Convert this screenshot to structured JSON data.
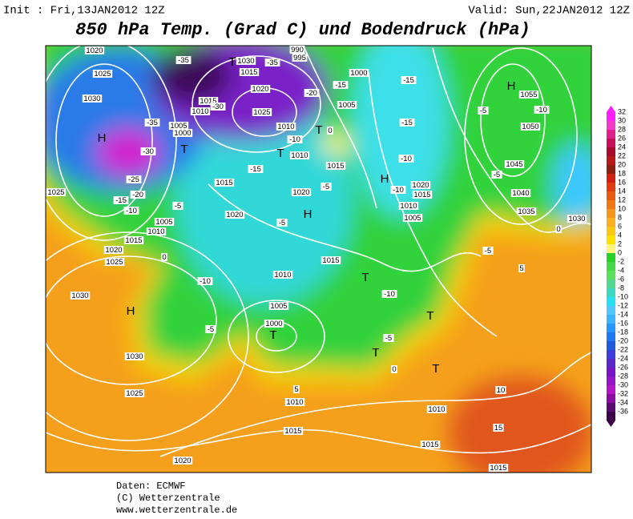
{
  "header": {
    "init": "Init : Fri,13JAN2012 12Z",
    "valid": "Valid: Sun,22JAN2012 12Z",
    "title": "850 hPa Temp. (Grad C) und Bodendruck (hPa)"
  },
  "map": {
    "pressure_centers": [
      "H",
      "H",
      "H",
      "H",
      "H",
      "T",
      "T",
      "T",
      "T",
      "T",
      "T",
      "T",
      "T",
      "T"
    ],
    "isobar_labels": [
      1020,
      1025,
      1030,
      1005,
      1000,
      1010,
      1015,
      1020,
      1025,
      1015,
      1030,
      1010,
      1010,
      1015,
      1020,
      1015,
      1020,
      1005,
      1010,
      1015,
      1020,
      1025,
      1030,
      1030,
      1025,
      1020,
      1015,
      1010,
      1005,
      1010,
      1000,
      1015,
      1005,
      1000,
      1020,
      1015,
      1010,
      1005,
      1015,
      1010,
      1015,
      1035,
      1040,
      1045,
      1050,
      1055,
      1030,
      1025,
      990,
      995
    ],
    "temperature_labels": [
      -35,
      -35,
      -30,
      -35,
      -30,
      -25,
      -20,
      -15,
      -10,
      -5,
      -15,
      -10,
      -20,
      -15,
      -15,
      -15,
      -10,
      -10,
      -5,
      -5,
      -10,
      -5,
      -5,
      -10,
      0,
      0,
      5,
      10,
      15,
      -5,
      -10,
      -5,
      -5,
      0,
      5,
      0
    ]
  },
  "colorbar": {
    "ticks": [
      32,
      30,
      28,
      26,
      24,
      22,
      20,
      18,
      16,
      14,
      12,
      10,
      8,
      6,
      4,
      2,
      0,
      -2,
      -4,
      -6,
      -8,
      -10,
      -12,
      -14,
      -16,
      -18,
      -20,
      -22,
      -24,
      -26,
      -28,
      -30,
      -32,
      -34,
      -36
    ],
    "colors": [
      "#ff1cff",
      "#f23cc8",
      "#e0208a",
      "#c8105a",
      "#a80c2c",
      "#b81818",
      "#8c2010",
      "#d02010",
      "#e03c10",
      "#e85a10",
      "#f07814",
      "#f5961c",
      "#f8b020",
      "#fac814",
      "#fde200",
      "#fff57a",
      "#28d228",
      "#46d846",
      "#5ae05a",
      "#50d890",
      "#3cd8c0",
      "#28e0f0",
      "#50c8ff",
      "#3cb4ff",
      "#2896ff",
      "#1e78f0",
      "#1e5adc",
      "#3c3cdc",
      "#5a28c8",
      "#7814c8",
      "#9614c8",
      "#b414c8",
      "#8c0aa0",
      "#5a0a6e",
      "#3c0046"
    ]
  },
  "footer": [
    "Daten: ECMWF",
    "(C) Wetterzentrale",
    "www.wetterzentrale.de"
  ]
}
